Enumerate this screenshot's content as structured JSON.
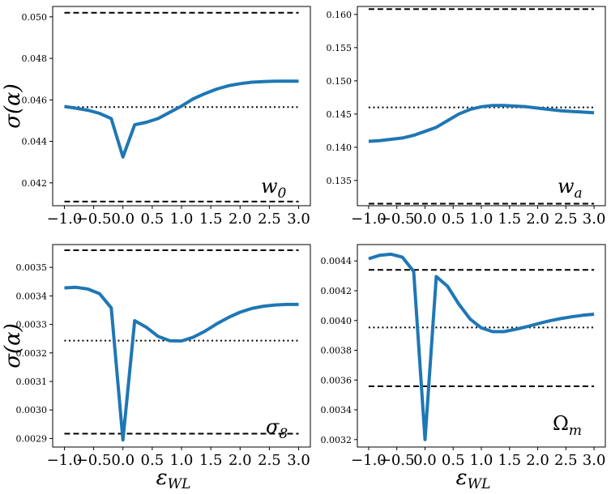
{
  "chart_data": [
    {
      "type": "line",
      "panel_label": "w",
      "panel_label_sub": "0",
      "ylabel": "σ(α)",
      "xlabel": "",
      "ylim": [
        0.0409,
        0.0505
      ],
      "xlim": [
        -1.2,
        3.2
      ],
      "yticks": [
        0.042,
        0.044,
        0.046,
        0.048,
        0.05
      ],
      "ytick_labels": [
        "0.042",
        "0.044",
        "0.046",
        "0.048",
        "0.050"
      ],
      "xticks": [
        -1.0,
        -0.5,
        0.0,
        0.5,
        1.0,
        1.5,
        2.0,
        2.5,
        3.0
      ],
      "xtick_labels": [
        "−1.0",
        "−0.5",
        "0.0",
        "0.5",
        "1.0",
        "1.5",
        "2.0",
        "2.5",
        "3.0"
      ],
      "reference_lines": {
        "upper": 0.0502,
        "middle": 0.04565,
        "lower": 0.0411
      },
      "series": [
        {
          "x": [
            -1.0,
            -0.8,
            -0.6,
            -0.4,
            -0.2,
            0.0,
            0.2,
            0.4,
            0.6,
            0.8,
            1.0,
            1.2,
            1.4,
            1.6,
            1.8,
            2.0,
            2.2,
            2.4,
            2.6,
            2.8,
            3.0
          ],
          "values": [
            0.04568,
            0.0456,
            0.0455,
            0.04535,
            0.0451,
            0.04325,
            0.0448,
            0.04492,
            0.0451,
            0.0454,
            0.0457,
            0.04605,
            0.0463,
            0.04652,
            0.04668,
            0.04678,
            0.04685,
            0.04688,
            0.0469,
            0.0469,
            0.0469
          ]
        }
      ]
    },
    {
      "type": "line",
      "panel_label": "w",
      "panel_label_sub": "a",
      "ylabel": "",
      "xlabel": "",
      "ylim": [
        0.1312,
        0.1612
      ],
      "xlim": [
        -1.2,
        3.2
      ],
      "yticks": [
        0.135,
        0.14,
        0.145,
        0.15,
        0.155,
        0.16
      ],
      "ytick_labels": [
        "0.135",
        "0.140",
        "0.145",
        "0.150",
        "0.155",
        "0.160"
      ],
      "xticks": [
        -1.0,
        -0.5,
        0.0,
        0.5,
        1.0,
        1.5,
        2.0,
        2.5,
        3.0
      ],
      "xtick_labels": [
        "−1.0",
        "−0.5",
        "0.0",
        "0.5",
        "1.0",
        "1.5",
        "2.0",
        "2.5",
        "3.0"
      ],
      "reference_lines": {
        "upper": 0.1608,
        "middle": 0.146,
        "lower": 0.1315
      },
      "series": [
        {
          "x": [
            -1.0,
            -0.8,
            -0.6,
            -0.4,
            -0.2,
            0.0,
            0.2,
            0.4,
            0.6,
            0.8,
            1.0,
            1.2,
            1.4,
            1.6,
            1.8,
            2.0,
            2.2,
            2.4,
            2.6,
            2.8,
            3.0
          ],
          "values": [
            0.1409,
            0.141,
            0.1412,
            0.1414,
            0.1418,
            0.1424,
            0.143,
            0.144,
            0.145,
            0.1457,
            0.1461,
            0.1463,
            0.1463,
            0.1462,
            0.1461,
            0.1459,
            0.1457,
            0.1455,
            0.1454,
            0.1453,
            0.1452
          ]
        }
      ]
    },
    {
      "type": "line",
      "panel_label": "σ",
      "panel_label_sub": "8",
      "ylabel": "σ(α)",
      "xlabel": "ε",
      "xlabel_sub": "WL",
      "ylim": [
        0.00287,
        0.00358
      ],
      "xlim": [
        -1.2,
        3.2
      ],
      "yticks": [
        0.0029,
        0.003,
        0.0031,
        0.0032,
        0.0033,
        0.0034,
        0.0035
      ],
      "ytick_labels": [
        "0.0029",
        "0.0030",
        "0.0031",
        "0.0032",
        "0.0033",
        "0.0034",
        "0.0035"
      ],
      "xticks": [
        -1.0,
        -0.5,
        0.0,
        0.5,
        1.0,
        1.5,
        2.0,
        2.5,
        3.0
      ],
      "xtick_labels": [
        "−1.0",
        "−0.5",
        "0.0",
        "0.5",
        "1.0",
        "1.5",
        "2.0",
        "2.5",
        "3.0"
      ],
      "reference_lines": {
        "upper": 0.00356,
        "middle": 0.003243,
        "lower": 0.002917
      },
      "series": [
        {
          "x": [
            -1.0,
            -0.8,
            -0.6,
            -0.4,
            -0.2,
            0.0,
            0.2,
            0.4,
            0.6,
            0.8,
            1.0,
            1.2,
            1.4,
            1.6,
            1.8,
            2.0,
            2.2,
            2.4,
            2.6,
            2.8,
            3.0
          ],
          "values": [
            0.003428,
            0.00343,
            0.003424,
            0.003408,
            0.003358,
            0.002895,
            0.003313,
            0.00329,
            0.003258,
            0.003243,
            0.003242,
            0.003255,
            0.003276,
            0.003302,
            0.003324,
            0.003343,
            0.003356,
            0.003364,
            0.003368,
            0.00337,
            0.00337
          ]
        }
      ]
    },
    {
      "type": "line",
      "panel_label": "Ω",
      "panel_label_sub": "m",
      "ylabel": "",
      "xlabel": "ε",
      "xlabel_sub": "WL",
      "ylim": [
        0.00315,
        0.00451
      ],
      "xlim": [
        -1.2,
        3.2
      ],
      "yticks": [
        0.0032,
        0.0034,
        0.0036,
        0.0038,
        0.004,
        0.0042,
        0.0044
      ],
      "ytick_labels": [
        "0.0032",
        "0.0034",
        "0.0036",
        "0.0038",
        "0.0040",
        "0.0042",
        "0.0044"
      ],
      "xticks": [
        -1.0,
        -0.5,
        0.0,
        0.5,
        1.0,
        1.5,
        2.0,
        2.5,
        3.0
      ],
      "xtick_labels": [
        "−1.0",
        "−0.5",
        "0.0",
        "0.5",
        "1.0",
        "1.5",
        "2.0",
        "2.5",
        "3.0"
      ],
      "reference_lines": {
        "upper": 0.00434,
        "middle": 0.003953,
        "lower": 0.003558
      },
      "series": [
        {
          "x": [
            -1.0,
            -0.8,
            -0.6,
            -0.4,
            -0.2,
            0.0,
            0.2,
            0.4,
            0.6,
            0.8,
            1.0,
            1.2,
            1.4,
            1.6,
            1.8,
            2.0,
            2.2,
            2.4,
            2.6,
            2.8,
            3.0
          ],
          "values": [
            0.004415,
            0.004438,
            0.004445,
            0.004425,
            0.00433,
            0.0032,
            0.004295,
            0.00423,
            0.00411,
            0.00401,
            0.00395,
            0.003925,
            0.003925,
            0.00394,
            0.003958,
            0.003978,
            0.003997,
            0.004012,
            0.004025,
            0.004035,
            0.004042
          ]
        }
      ]
    }
  ],
  "colors": {
    "line": "#1f77b4",
    "reference": "#000000",
    "axes": "#000000",
    "background": "#ffffff"
  }
}
